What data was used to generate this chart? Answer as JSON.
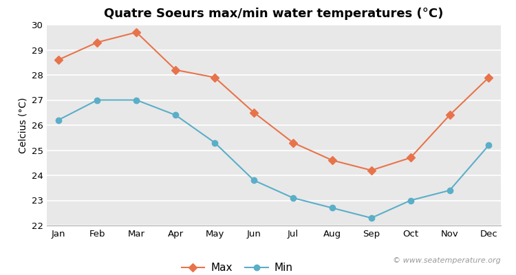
{
  "title": "Quatre Soeurs max/min water temperatures (°C)",
  "ylabel": "Celcius (°C)",
  "months": [
    "Jan",
    "Feb",
    "Mar",
    "Apr",
    "May",
    "Jun",
    "Jul",
    "Aug",
    "Sep",
    "Oct",
    "Nov",
    "Dec"
  ],
  "max_values": [
    28.6,
    29.3,
    29.7,
    28.2,
    27.9,
    26.5,
    25.3,
    24.6,
    24.2,
    24.7,
    26.4,
    27.9
  ],
  "min_values": [
    26.2,
    27.0,
    27.0,
    26.4,
    25.3,
    23.8,
    23.1,
    22.7,
    22.3,
    23.0,
    23.4,
    25.2
  ],
  "max_color": "#e8734a",
  "min_color": "#5aaec8",
  "background_color": "#ffffff",
  "plot_bg_color": "#e8e8e8",
  "grid_color": "#ffffff",
  "ylim": [
    22,
    30
  ],
  "yticks": [
    22,
    23,
    24,
    25,
    26,
    27,
    28,
    29,
    30
  ],
  "legend_labels": [
    "Max",
    "Min"
  ],
  "watermark": "© www.seatemperature.org",
  "title_fontsize": 13,
  "label_fontsize": 10,
  "tick_fontsize": 9.5,
  "legend_fontsize": 11,
  "watermark_fontsize": 8
}
